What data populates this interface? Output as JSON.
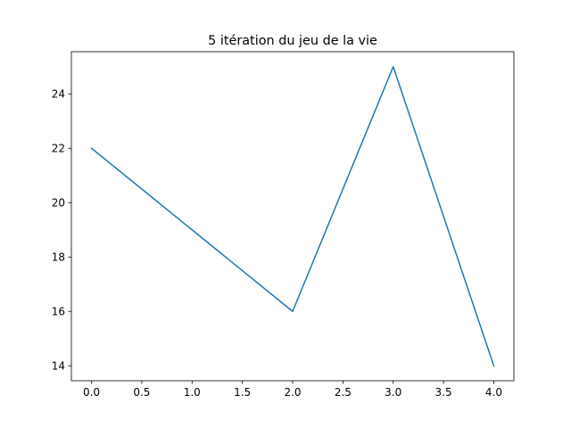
{
  "chart_data": {
    "type": "line",
    "title": "5 itération du jeu de la vie",
    "xlabel": "",
    "ylabel": "",
    "x": [
      0,
      1,
      2,
      3,
      4
    ],
    "series": [
      {
        "values": [
          22,
          19,
          16,
          25,
          14
        ],
        "color": "#1f77b4"
      }
    ],
    "xlim": [
      -0.2,
      4.2
    ],
    "ylim": [
      13.45,
      25.55
    ],
    "xticks": [
      0.0,
      0.5,
      1.0,
      1.5,
      2.0,
      2.5,
      3.0,
      3.5,
      4.0
    ],
    "xtick_labels": [
      "0.0",
      "0.5",
      "1.0",
      "1.5",
      "2.0",
      "2.5",
      "3.0",
      "3.5",
      "4.0"
    ],
    "yticks": [
      14,
      16,
      18,
      20,
      22,
      24
    ],
    "ytick_labels": [
      "14",
      "16",
      "18",
      "20",
      "22",
      "24"
    ],
    "grid": false,
    "legend": "none"
  }
}
